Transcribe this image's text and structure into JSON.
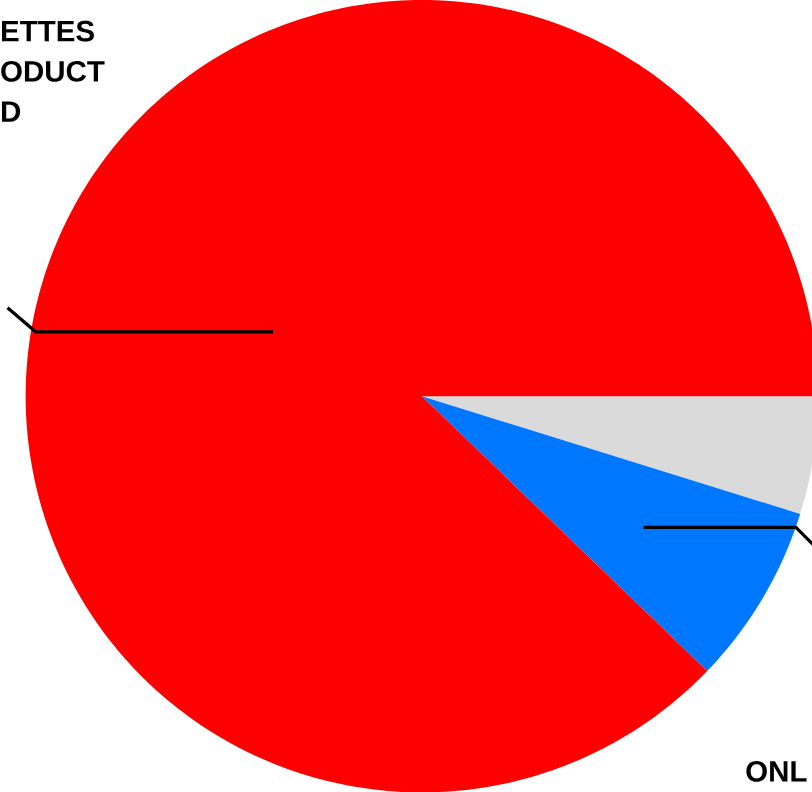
{
  "chart_data": {
    "type": "pie",
    "categories": [
      null,
      "ONL",
      "ETTES ODUCT D"
    ],
    "values": [
      4.8,
      7.4,
      87.8
    ],
    "colors": [
      "#dadada",
      "#0077ff",
      "#ff0000"
    ]
  }
}
